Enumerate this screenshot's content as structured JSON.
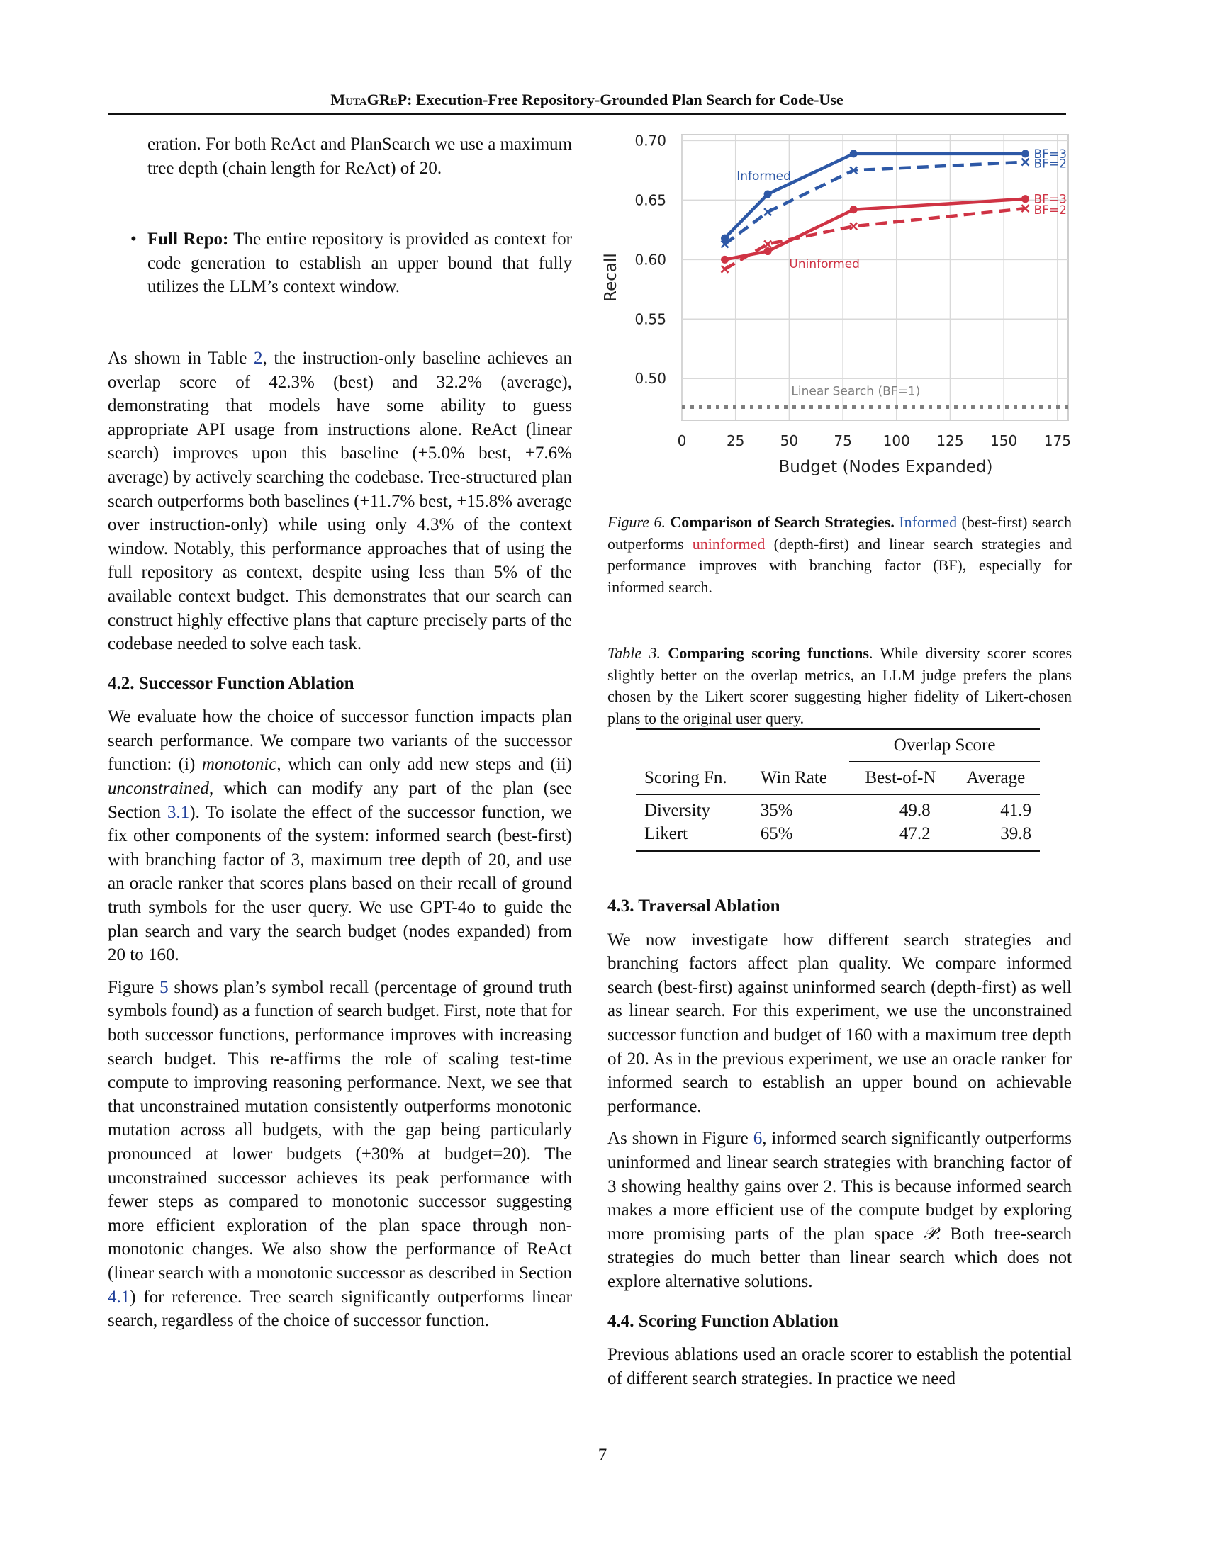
{
  "header": {
    "title_smallcaps": "MutaGReP",
    "title_rest": ": Execution-Free Repository-Grounded Plan Search for Code-Use"
  },
  "left": {
    "cont_paragraph": "eration.  For both ReAct and PlanSearch we use a maximum tree depth (chain length for ReAct) of 20.",
    "bullet_label": "Full Repo:",
    "bullet_text": " The entire repository is provided as context for code generation to establish an upper bound that fully utilizes the LLM’s context window.",
    "p1_a": "As shown in Table ",
    "p1_ref": "2",
    "p1_b": ", the instruction-only baseline achieves an overlap score of 42.3% (best) and 32.2% (average), demonstrating that models have some ability to guess appropriate API usage from instructions alone.  ReAct (linear search) improves upon this baseline (+5.0% best, +7.6% average) by actively searching the codebase. Tree-structured plan search outperforms both baselines (+11.7% best, +15.8% average over instruction-only) while using only 4.3% of the context window. Notably, this performance approaches that of using the full repository as context, despite using less than 5% of the available context budget. This demonstrates that our search can construct highly effective plans that capture precisely parts of the codebase needed to solve each task.",
    "sec42_title": "4.2. Successor Function Ablation",
    "p2_a": "We evaluate how the choice of successor function impacts plan search performance. We compare two variants of the successor function: (i) ",
    "p2_i1": "monotonic",
    "p2_b": ", which can only add new steps and (ii) ",
    "p2_i2": "unconstrained",
    "p2_c": ", which can modify any part of the plan (see Section ",
    "p2_ref": "3.1",
    "p2_d": ").  To isolate the effect of the successor function, we fix other components of the system: informed search (best-first) with branching factor of 3, maximum tree depth of 20, and use an oracle ranker that scores plans based on their recall of ground truth symbols for the user query.  We use GPT-4o to guide the plan search and vary the search budget (nodes expanded) from 20 to 160.",
    "p3_a": "Figure ",
    "p3_ref": "5",
    "p3_b": " shows plan’s symbol recall (percentage of ground truth symbols found) as a function of search budget. First, note that for both successor functions, performance improves with increasing search budget.  This re-affirms the role of scaling test-time compute to improving reasoning performance. Next, we see that that unconstrained mutation consistently outperforms monotonic mutation across all budgets, with the gap being particularly pronounced at lower budgets (+30% at budget=20). The unconstrained successor achieves its peak performance with fewer steps as compared to monotonic successor suggesting more efficient exploration of the plan space through non-monotonic changes. We also show the performance of ReAct (linear search with a monotonic successor as described in Section ",
    "p3_ref2": "4.1",
    "p3_c": ") for reference. Tree search significantly outperforms linear search, regardless of the choice of successor function."
  },
  "figure6": {
    "label": "Figure 6.",
    "bold": " Comparison of Search Strategies.",
    "informed": "Informed",
    "text_a": " (best-first) search outperforms ",
    "uninformed": "uninformed",
    "text_b": " (depth-first) and linear search strategies and performance improves with branching factor (BF), especially for informed search."
  },
  "chart_data": {
    "type": "line",
    "xlabel": "Budget (Nodes Expanded)",
    "ylabel": "Recall",
    "xlim": [
      0,
      180
    ],
    "ylim": [
      0.465,
      0.705
    ],
    "xticks": [
      "0",
      "25",
      "50",
      "75",
      "100",
      "125",
      "150",
      "175"
    ],
    "xtick_values": [
      0,
      25,
      50,
      75,
      100,
      125,
      150,
      175
    ],
    "yticks": [
      "0.50",
      "0.55",
      "0.60",
      "0.65",
      "0.70"
    ],
    "ytick_values": [
      0.5,
      0.55,
      0.6,
      0.65,
      0.7
    ],
    "grid": true,
    "colors": {
      "informed": "#2d58a6",
      "uninformed": "#cf3344",
      "linear": "#7f7f7f"
    },
    "series": [
      {
        "name": "BF=3",
        "group": "informed",
        "style": "solid",
        "marker": "circle",
        "x": [
          20,
          40,
          80,
          160
        ],
        "y": [
          0.618,
          0.655,
          0.689,
          0.689
        ]
      },
      {
        "name": "BF=2",
        "group": "informed",
        "style": "dashed",
        "marker": "x",
        "x": [
          20,
          40,
          80,
          160
        ],
        "y": [
          0.613,
          0.64,
          0.675,
          0.682
        ]
      },
      {
        "name": "BF=3",
        "group": "uninformed",
        "style": "solid",
        "marker": "circle",
        "x": [
          20,
          40,
          80,
          160
        ],
        "y": [
          0.6,
          0.607,
          0.642,
          0.651
        ]
      },
      {
        "name": "BF=2",
        "group": "uninformed",
        "style": "dashed",
        "marker": "x",
        "x": [
          20,
          40,
          80,
          160
        ],
        "y": [
          0.592,
          0.613,
          0.628,
          0.643
        ]
      },
      {
        "name": "Linear Search (BF=1)",
        "group": "linear",
        "style": "dotted",
        "marker": "none",
        "x": [
          0,
          180
        ],
        "y": [
          0.476,
          0.476
        ]
      }
    ],
    "annotations": {
      "informed": "Informed",
      "uninformed": "Uninformed",
      "linear": "Linear Search (BF=1)"
    }
  },
  "table3": {
    "label": "Table 3.",
    "bold": " Comparing scoring functions",
    "text": ".  While diversity scorer scores slightly better on the overlap metrics, an LLM judge prefers the plans chosen by the Likert scorer suggesting higher fidelity of Likert-chosen plans to the original user query.",
    "group_header": "Overlap Score",
    "columns": [
      "Scoring Fn.",
      "Win Rate",
      "Best-of-N",
      "Average"
    ],
    "rows": [
      [
        "Diversity",
        "35%",
        "49.8",
        "41.9"
      ],
      [
        "Likert",
        "65%",
        "47.2",
        "39.8"
      ]
    ]
  },
  "right": {
    "sec43_title": "4.3. Traversal Ablation",
    "p4": "We now investigate how different search strategies and branching factors affect plan quality. We compare informed search (best-first) against uninformed search (depth-first) as well as linear search.  For this experiment, we use the unconstrained successor function and budget of 160 with a maximum tree depth of 20. As in the previous experiment, we use an oracle ranker for informed search to establish an upper bound on achievable performance.",
    "p5_a": "As shown in Figure ",
    "p5_ref": "6",
    "p5_b": ", informed search significantly outperforms uninformed and linear search strategies with branching factor of 3 showing healthy gains over 2. This is because informed search makes a more efficient use of the compute budget by exploring more promising parts of the plan space ",
    "p5_sym": "𝒫",
    "p5_c": ".  Both tree-search strategies do much better than linear search which does not explore alternative solutions.",
    "sec44_title": "4.4. Scoring Function Ablation",
    "p6": "Previous ablations used an oracle scorer to establish the potential of different search strategies. In practice we need"
  },
  "page_number": "7"
}
